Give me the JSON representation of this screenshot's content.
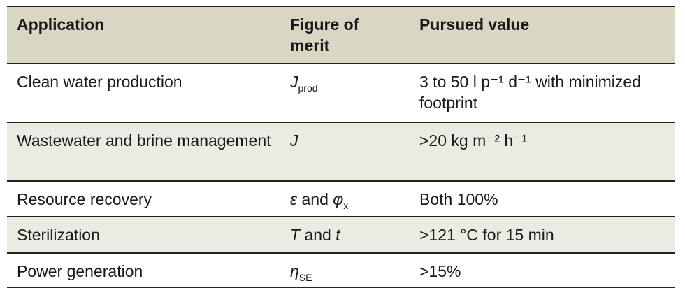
{
  "table": {
    "headers": [
      "Application",
      "Figure of merit",
      "Pursued value"
    ],
    "rows": [
      {
        "application": "Clean water production",
        "figure": {
          "main": "J",
          "sub": "prod",
          "and": "",
          "main2": "",
          "sub2": ""
        },
        "value": "3 to 50 l p⁻¹ d⁻¹ with minimized footprint"
      },
      {
        "application": "Wastewater and brine management",
        "figure": {
          "main": "J",
          "sub": "",
          "and": "",
          "main2": "",
          "sub2": ""
        },
        "value": ">20 kg m⁻² h⁻¹"
      },
      {
        "application": "Resource recovery",
        "figure": {
          "main": "ε",
          "sub": "",
          "and": " and ",
          "main2": "φ",
          "sub2": "x"
        },
        "value": "Both 100%"
      },
      {
        "application": "Sterilization",
        "figure": {
          "main": "T",
          "sub": "",
          "and": " and ",
          "main2": "t",
          "sub2": ""
        },
        "value": ">121 °C for 15 min"
      },
      {
        "application": "Power generation",
        "figure": {
          "main": "η",
          "sub": "SE",
          "and": "",
          "main2": "",
          "sub2": ""
        },
        "value": ">15%"
      }
    ]
  },
  "colors": {
    "header_bg": "#d9d6c4",
    "alt_row_bg": "#ecebe2",
    "rule": "#222222"
  }
}
